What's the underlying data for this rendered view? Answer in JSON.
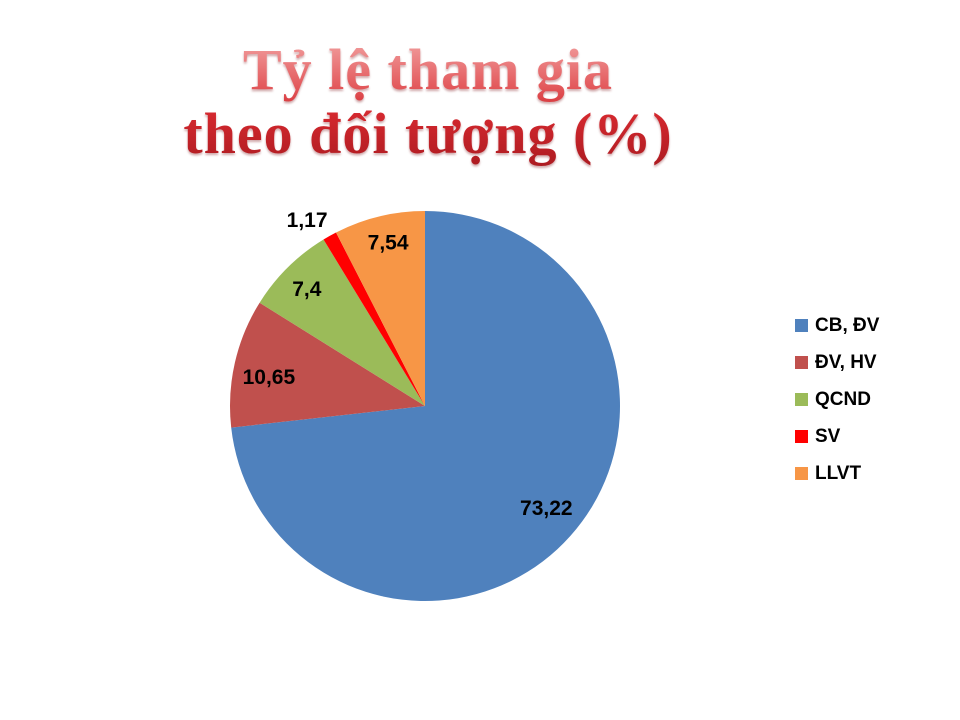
{
  "chart_data": {
    "type": "pie",
    "title": "Tỷ lệ tham gia theo đối tượng (%)",
    "title_lines": [
      "Tỷ lệ tham gia",
      "theo đối tượng (%)"
    ],
    "legend_position": "right",
    "direction": "clockwise",
    "start_angle_deg": 0,
    "decimal_separator": ",",
    "slices": [
      {
        "label": "CB, ĐV",
        "value": 73.22,
        "display": "73,22",
        "color": "#4F81BD"
      },
      {
        "label": "ĐV, HV",
        "value": 10.65,
        "display": "10,65",
        "color": "#C0504D"
      },
      {
        "label": "QCND",
        "value": 7.4,
        "display": "7,4",
        "color": "#9BBB59"
      },
      {
        "label": "SV",
        "value": 1.17,
        "display": "1,17",
        "color": "#FF0000"
      },
      {
        "label": "LLVT",
        "value": 7.54,
        "display": "7,54",
        "color": "#F79646"
      }
    ]
  }
}
